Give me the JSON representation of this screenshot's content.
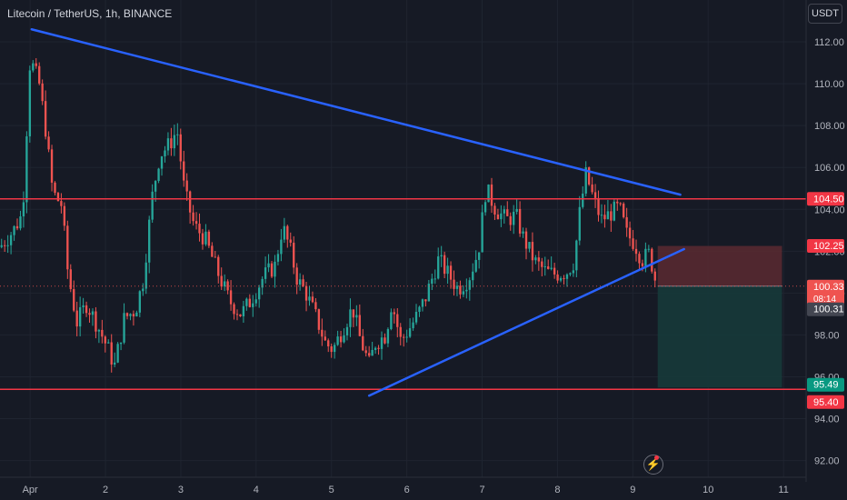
{
  "header": {
    "symbol": "Litecoin / TetherUS",
    "interval": "1h",
    "exchange": "BINANCE",
    "separator": ","
  },
  "unit_button": "USDT",
  "indicator_icon": "lightning-icon",
  "colors": {
    "background": "#161a25",
    "up": "#26a69a",
    "down": "#ef5350",
    "trendline": "#2962ff",
    "level": "#f23645",
    "stop_zone": "#5b2a31",
    "target_zone": "#163a3a",
    "axis_text": "#b2b5be"
  },
  "chart_data": {
    "type": "candlestick",
    "title": "Litecoin / TetherUS, 1h, BINANCE",
    "y_axis": {
      "ylim": [
        91.2,
        114.0
      ],
      "ticks": [
        92,
        94,
        96,
        98,
        100,
        102,
        104,
        106,
        108,
        110,
        112
      ],
      "tick_labels": [
        "92.00",
        "94.00",
        "96.00",
        "98.00",
        "100.00",
        "102.00",
        "104.00",
        "106.00",
        "108.00",
        "110.00",
        "112.00"
      ]
    },
    "x_axis": {
      "xlim": [
        0.6,
        11.3
      ],
      "ticks": [
        1,
        2,
        3,
        4,
        5,
        6,
        7,
        8,
        9,
        10,
        11
      ],
      "tick_labels": [
        "Apr",
        "2",
        "3",
        "4",
        "5",
        "6",
        "7",
        "8",
        "9",
        "10",
        "11"
      ]
    },
    "anchors": [
      [
        0.6,
        102.2
      ],
      [
        0.78,
        103.0
      ],
      [
        0.9,
        103.8
      ],
      [
        1.0,
        111.2
      ],
      [
        1.12,
        110.0
      ],
      [
        1.2,
        108.0
      ],
      [
        1.3,
        104.8
      ],
      [
        1.42,
        104.2
      ],
      [
        1.5,
        101.0
      ],
      [
        1.62,
        98.6
      ],
      [
        1.75,
        99.5
      ],
      [
        1.9,
        98.4
      ],
      [
        2.05,
        97.2
      ],
      [
        2.12,
        96.5
      ],
      [
        2.25,
        98.8
      ],
      [
        2.4,
        99.2
      ],
      [
        2.5,
        100.6
      ],
      [
        2.62,
        104.6
      ],
      [
        2.72,
        106.6
      ],
      [
        2.85,
        107.1
      ],
      [
        2.95,
        107.8
      ],
      [
        3.05,
        104.8
      ],
      [
        3.18,
        103.2
      ],
      [
        3.32,
        102.6
      ],
      [
        3.5,
        100.9
      ],
      [
        3.65,
        99.6
      ],
      [
        3.8,
        99.0
      ],
      [
        3.92,
        99.6
      ],
      [
        4.1,
        100.8
      ],
      [
        4.25,
        101.3
      ],
      [
        4.35,
        103.2
      ],
      [
        4.45,
        102.1
      ],
      [
        4.55,
        100.6
      ],
      [
        4.65,
        100.1
      ],
      [
        4.8,
        98.8
      ],
      [
        4.92,
        97.6
      ],
      [
        5.02,
        97.3
      ],
      [
        5.15,
        98.3
      ],
      [
        5.28,
        99.3
      ],
      [
        5.38,
        97.8
      ],
      [
        5.5,
        96.6
      ],
      [
        5.58,
        97.6
      ],
      [
        5.72,
        98.0
      ],
      [
        5.8,
        99.6
      ],
      [
        5.92,
        97.7
      ],
      [
        6.05,
        98.4
      ],
      [
        6.15,
        99.0
      ],
      [
        6.25,
        99.8
      ],
      [
        6.42,
        101.6
      ],
      [
        6.55,
        100.9
      ],
      [
        6.68,
        100.2
      ],
      [
        6.82,
        100.7
      ],
      [
        6.95,
        102.0
      ],
      [
        7.05,
        105.0
      ],
      [
        7.18,
        104.0
      ],
      [
        7.32,
        103.5
      ],
      [
        7.45,
        103.7
      ],
      [
        7.55,
        102.6
      ],
      [
        7.7,
        101.5
      ],
      [
        7.85,
        101.0
      ],
      [
        7.98,
        100.9
      ],
      [
        8.12,
        101.0
      ],
      [
        8.22,
        101.5
      ],
      [
        8.3,
        104.0
      ],
      [
        8.38,
        105.7
      ],
      [
        8.45,
        104.8
      ],
      [
        8.58,
        103.5
      ],
      [
        8.7,
        103.8
      ],
      [
        8.82,
        104.1
      ],
      [
        8.92,
        102.8
      ],
      [
        9.02,
        102.4
      ],
      [
        9.12,
        101.6
      ],
      [
        9.22,
        101.9
      ],
      [
        9.3,
        100.6
      ]
    ],
    "trendlines": [
      {
        "name": "resistance",
        "from": [
          1.02,
          112.6
        ],
        "to": [
          9.63,
          104.7
        ]
      },
      {
        "name": "support",
        "from": [
          5.5,
          95.1
        ],
        "to": [
          9.68,
          102.1
        ]
      }
    ],
    "horizontal_levels": [
      104.5,
      95.4
    ],
    "position_tool": {
      "x_start": 9.33,
      "x_end": 10.98,
      "entry": 100.33,
      "stop": 102.25,
      "target": 95.49
    },
    "price_labels": [
      {
        "price": 104.5,
        "label": "104.50",
        "kind": "level"
      },
      {
        "price": 102.25,
        "label": "102.25",
        "kind": "level"
      },
      {
        "price": 100.33,
        "label": "100.33",
        "sub": "08:14",
        "kind": "last"
      },
      {
        "price": 100.31,
        "label": "100.31",
        "kind": "gray"
      },
      {
        "price": 95.49,
        "label": "95.49",
        "kind": "target"
      },
      {
        "price": 95.4,
        "label": "95.40",
        "kind": "level"
      }
    ]
  }
}
